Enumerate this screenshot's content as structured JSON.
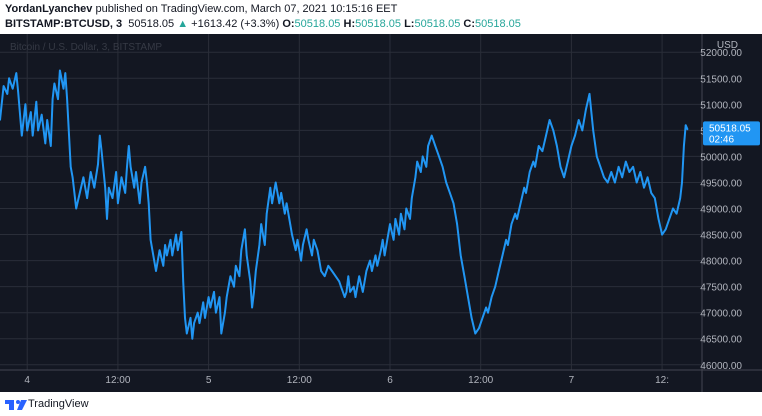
{
  "header": {
    "author": "YordanLyanchev",
    "published_text": " published on TradingView.com, March 07, 2021 10:15:16 EET",
    "symbol": "BITSTAMP:BTCUSD, 3",
    "last": "50518.05",
    "change_arrow": "▲",
    "change": "+1613.42 (+3.3%)",
    "o_label": "O:",
    "o_value": "50518.05",
    "h_label": "H:",
    "h_value": "50518.05",
    "l_label": "L:",
    "l_value": "50518.05",
    "c_label": "C:",
    "c_value": "50518.05"
  },
  "footer": {
    "brand": "TradingView",
    "logo_icon": "tradingview-logo-icon"
  },
  "colors": {
    "background": "#131722",
    "grid": "#2a2e39",
    "line": "#2196f3",
    "label_bg": "#2196f3",
    "axis_text": "#b2b5be",
    "watermark": "#363a45",
    "up": "#26a69a"
  },
  "chart_data": {
    "type": "line",
    "watermark": "Bitcoin / U.S. Dollar, 3, BITSTAMP",
    "currency": "USD",
    "y_ticks": [
      "52000.00",
      "51500.00",
      "51000.00",
      "50500.00",
      "50000.00",
      "49500.00",
      "49000.00",
      "48500.00",
      "48000.00",
      "47500.00",
      "47000.00",
      "46500.00",
      "46000.00"
    ],
    "ylim": [
      45900,
      52350
    ],
    "x_ticks": [
      {
        "label": "4",
        "x": 3.75
      },
      {
        "label": "12:00",
        "x": 4.25
      },
      {
        "label": "5",
        "x": 4.75
      },
      {
        "label": "12:00",
        "x": 5.25
      },
      {
        "label": "6",
        "x": 5.75
      },
      {
        "label": "12:00",
        "x": 6.25
      },
      {
        "label": "7",
        "x": 6.75
      },
      {
        "label": "12:",
        "x": 7.25
      }
    ],
    "xlim": [
      3.6,
      7.47
    ],
    "last_price_label": "50518.05",
    "countdown": "02:46",
    "series": [
      {
        "values": [
          [
            3.6,
            50700
          ],
          [
            3.62,
            51350
          ],
          [
            3.64,
            51200
          ],
          [
            3.65,
            51500
          ],
          [
            3.67,
            51300
          ],
          [
            3.69,
            51600
          ],
          [
            3.7,
            51250
          ],
          [
            3.72,
            50400
          ],
          [
            3.74,
            51000
          ],
          [
            3.75,
            50500
          ],
          [
            3.77,
            50850
          ],
          [
            3.78,
            50400
          ],
          [
            3.8,
            51050
          ],
          [
            3.81,
            50500
          ],
          [
            3.83,
            50800
          ],
          [
            3.85,
            50250
          ],
          [
            3.86,
            50700
          ],
          [
            3.88,
            50200
          ],
          [
            3.89,
            51100
          ],
          [
            3.9,
            51400
          ],
          [
            3.92,
            51100
          ],
          [
            3.93,
            51650
          ],
          [
            3.95,
            51300
          ],
          [
            3.96,
            51600
          ],
          [
            3.97,
            51100
          ],
          [
            3.99,
            49800
          ],
          [
            4.0,
            49600
          ],
          [
            4.02,
            49000
          ],
          [
            4.04,
            49300
          ],
          [
            4.06,
            49600
          ],
          [
            4.08,
            49200
          ],
          [
            4.1,
            49700
          ],
          [
            4.12,
            49400
          ],
          [
            4.14,
            49850
          ],
          [
            4.15,
            50400
          ],
          [
            4.16,
            50100
          ],
          [
            4.18,
            49400
          ],
          [
            4.19,
            48800
          ],
          [
            4.2,
            49400
          ],
          [
            4.22,
            49200
          ],
          [
            4.24,
            49700
          ],
          [
            4.25,
            49100
          ],
          [
            4.27,
            49600
          ],
          [
            4.29,
            49300
          ],
          [
            4.3,
            49800
          ],
          [
            4.31,
            50200
          ],
          [
            4.32,
            49800
          ],
          [
            4.34,
            49400
          ],
          [
            4.35,
            49700
          ],
          [
            4.37,
            49100
          ],
          [
            4.38,
            49500
          ],
          [
            4.4,
            49800
          ],
          [
            4.41,
            49500
          ],
          [
            4.42,
            49100
          ],
          [
            4.43,
            48400
          ],
          [
            4.45,
            48000
          ],
          [
            4.46,
            47800
          ],
          [
            4.48,
            48200
          ],
          [
            4.5,
            47900
          ],
          [
            4.51,
            48300
          ],
          [
            4.52,
            48100
          ],
          [
            4.54,
            48400
          ],
          [
            4.55,
            48100
          ],
          [
            4.57,
            48500
          ],
          [
            4.58,
            48200
          ],
          [
            4.6,
            48550
          ],
          [
            4.61,
            47600
          ],
          [
            4.62,
            46900
          ],
          [
            4.63,
            46600
          ],
          [
            4.65,
            46900
          ],
          [
            4.66,
            46500
          ],
          [
            4.67,
            46800
          ],
          [
            4.69,
            47000
          ],
          [
            4.7,
            46800
          ],
          [
            4.72,
            47200
          ],
          [
            4.73,
            46900
          ],
          [
            4.75,
            47300
          ],
          [
            4.76,
            47100
          ],
          [
            4.78,
            47400
          ],
          [
            4.79,
            47000
          ],
          [
            4.81,
            47300
          ],
          [
            4.82,
            46600
          ],
          [
            4.84,
            47000
          ],
          [
            4.85,
            47300
          ],
          [
            4.87,
            47700
          ],
          [
            4.89,
            47500
          ],
          [
            4.9,
            47900
          ],
          [
            4.92,
            47700
          ],
          [
            4.93,
            48200
          ],
          [
            4.95,
            48600
          ],
          [
            4.96,
            48100
          ],
          [
            4.98,
            47600
          ],
          [
            4.99,
            47100
          ],
          [
            5.0,
            47400
          ],
          [
            5.01,
            47800
          ],
          [
            5.03,
            48300
          ],
          [
            5.04,
            48700
          ],
          [
            5.06,
            48300
          ],
          [
            5.07,
            48900
          ],
          [
            5.09,
            49400
          ],
          [
            5.1,
            49100
          ],
          [
            5.12,
            49500
          ],
          [
            5.14,
            49100
          ],
          [
            5.15,
            49300
          ],
          [
            5.17,
            48900
          ],
          [
            5.18,
            49100
          ],
          [
            5.2,
            48700
          ],
          [
            5.21,
            48500
          ],
          [
            5.23,
            48200
          ],
          [
            5.24,
            48400
          ],
          [
            5.26,
            48000
          ],
          [
            5.27,
            48300
          ],
          [
            5.29,
            48600
          ],
          [
            5.3,
            48400
          ],
          [
            5.32,
            48100
          ],
          [
            5.33,
            48400
          ],
          [
            5.35,
            48200
          ],
          [
            5.36,
            48000
          ],
          [
            5.37,
            47800
          ],
          [
            5.39,
            47700
          ],
          [
            5.41,
            47900
          ],
          [
            5.43,
            47800
          ],
          [
            5.45,
            47700
          ],
          [
            5.47,
            47600
          ],
          [
            5.48,
            47500
          ],
          [
            5.5,
            47300
          ],
          [
            5.51,
            47400
          ],
          [
            5.52,
            47700
          ],
          [
            5.53,
            47400
          ],
          [
            5.55,
            47500
          ],
          [
            5.56,
            47300
          ],
          [
            5.58,
            47700
          ],
          [
            5.6,
            47400
          ],
          [
            5.61,
            47600
          ],
          [
            5.62,
            47800
          ],
          [
            5.64,
            48000
          ],
          [
            5.65,
            47800
          ],
          [
            5.67,
            48100
          ],
          [
            5.68,
            47900
          ],
          [
            5.7,
            48200
          ],
          [
            5.71,
            48400
          ],
          [
            5.72,
            48100
          ],
          [
            5.74,
            48500
          ],
          [
            5.75,
            48700
          ],
          [
            5.77,
            48400
          ],
          [
            5.78,
            48800
          ],
          [
            5.8,
            48500
          ],
          [
            5.81,
            48900
          ],
          [
            5.83,
            48600
          ],
          [
            5.84,
            49000
          ],
          [
            5.86,
            48800
          ],
          [
            5.87,
            49200
          ],
          [
            5.89,
            49600
          ],
          [
            5.9,
            49900
          ],
          [
            5.92,
            49700
          ],
          [
            5.93,
            50000
          ],
          [
            5.95,
            49800
          ],
          [
            5.96,
            50200
          ],
          [
            5.98,
            50400
          ],
          [
            6.0,
            50200
          ],
          [
            6.02,
            50000
          ],
          [
            6.04,
            49800
          ],
          [
            6.06,
            49500
          ],
          [
            6.08,
            49300
          ],
          [
            6.1,
            49100
          ],
          [
            6.12,
            48700
          ],
          [
            6.14,
            48100
          ],
          [
            6.16,
            47700
          ],
          [
            6.18,
            47300
          ],
          [
            6.2,
            46900
          ],
          [
            6.22,
            46600
          ],
          [
            6.24,
            46700
          ],
          [
            6.26,
            46900
          ],
          [
            6.28,
            47100
          ],
          [
            6.29,
            47000
          ],
          [
            6.31,
            47300
          ],
          [
            6.33,
            47500
          ],
          [
            6.35,
            47800
          ],
          [
            6.37,
            48100
          ],
          [
            6.39,
            48400
          ],
          [
            6.4,
            48300
          ],
          [
            6.42,
            48700
          ],
          [
            6.44,
            48900
          ],
          [
            6.45,
            48800
          ],
          [
            6.47,
            49100
          ],
          [
            6.49,
            49400
          ],
          [
            6.5,
            49300
          ],
          [
            6.52,
            49700
          ],
          [
            6.54,
            49900
          ],
          [
            6.55,
            49800
          ],
          [
            6.57,
            50200
          ],
          [
            6.59,
            50100
          ],
          [
            6.61,
            50400
          ],
          [
            6.63,
            50700
          ],
          [
            6.65,
            50500
          ],
          [
            6.67,
            50200
          ],
          [
            6.69,
            49800
          ],
          [
            6.71,
            49600
          ],
          [
            6.73,
            49900
          ],
          [
            6.75,
            50200
          ],
          [
            6.77,
            50400
          ],
          [
            6.79,
            50700
          ],
          [
            6.81,
            50500
          ],
          [
            6.83,
            50900
          ],
          [
            6.85,
            51200
          ],
          [
            6.87,
            50500
          ],
          [
            6.89,
            50000
          ],
          [
            6.91,
            49800
          ],
          [
            6.93,
            49600
          ],
          [
            6.95,
            49500
          ],
          [
            6.97,
            49700
          ],
          [
            6.99,
            49500
          ],
          [
            7.01,
            49800
          ],
          [
            7.03,
            49600
          ],
          [
            7.05,
            49900
          ],
          [
            7.07,
            49700
          ],
          [
            7.09,
            49800
          ],
          [
            7.11,
            49500
          ],
          [
            7.13,
            49700
          ],
          [
            7.15,
            49400
          ],
          [
            7.17,
            49600
          ],
          [
            7.19,
            49300
          ],
          [
            7.21,
            49200
          ],
          [
            7.23,
            48800
          ],
          [
            7.25,
            48500
          ],
          [
            7.27,
            48600
          ],
          [
            7.29,
            48800
          ],
          [
            7.31,
            49000
          ],
          [
            7.33,
            48900
          ],
          [
            7.35,
            49200
          ],
          [
            7.36,
            49500
          ],
          [
            7.37,
            50200
          ],
          [
            7.38,
            50600
          ],
          [
            7.39,
            50518
          ]
        ]
      }
    ]
  }
}
